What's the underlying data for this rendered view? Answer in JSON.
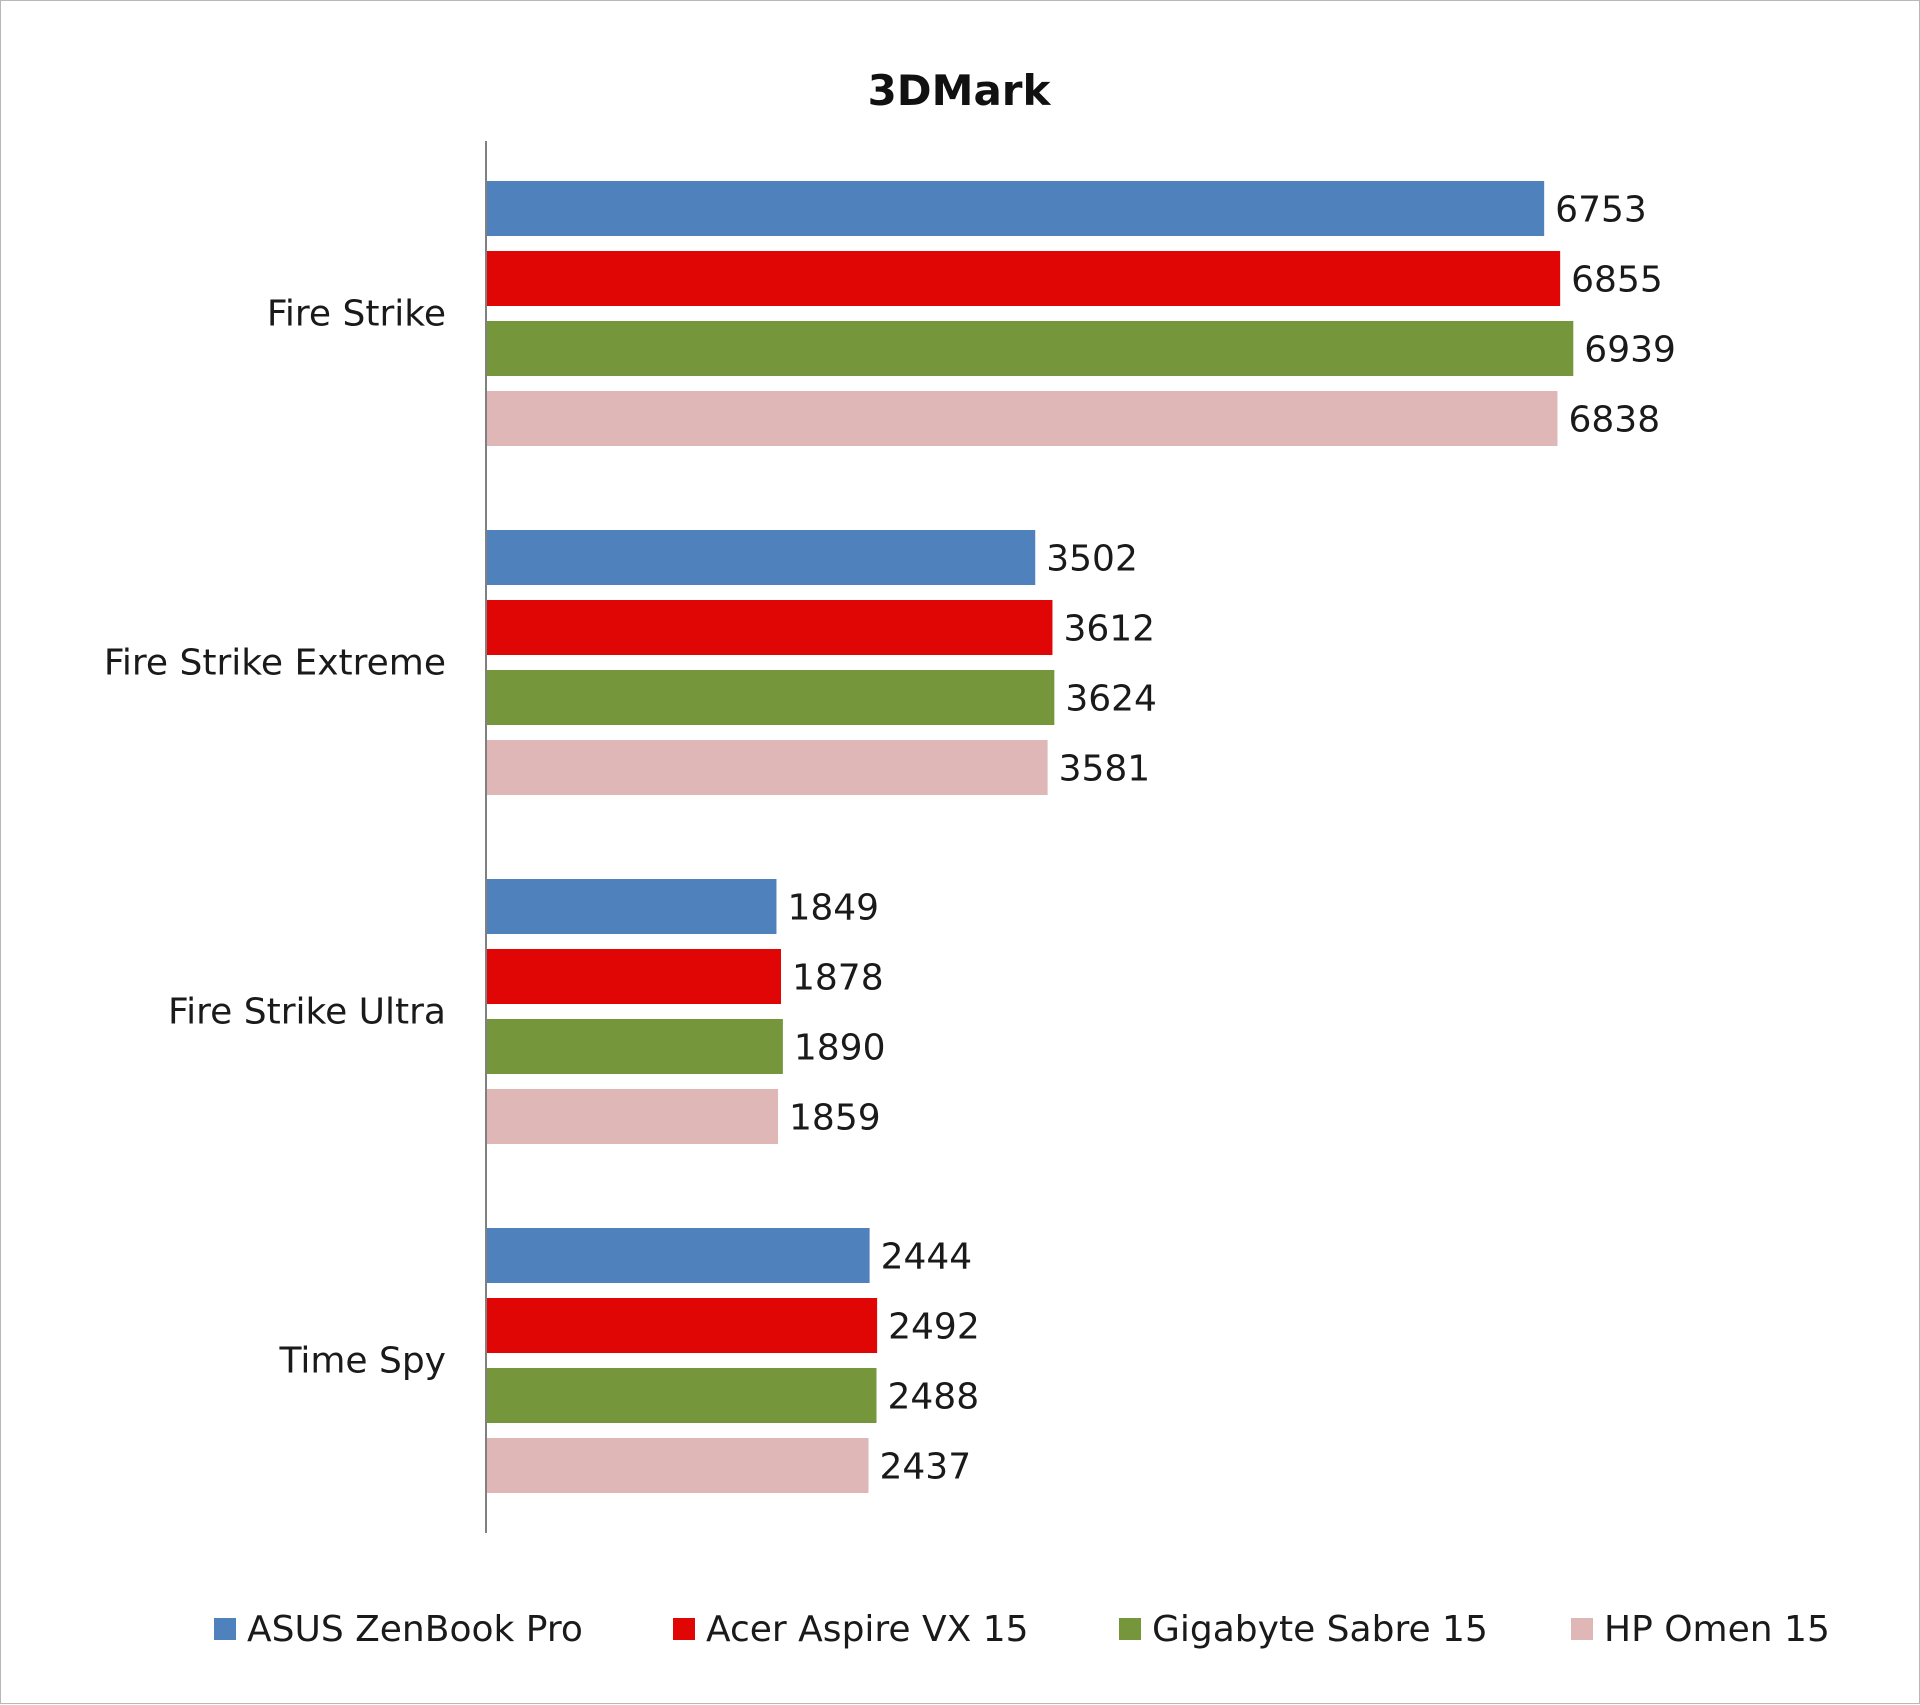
{
  "chart_data": {
    "type": "bar",
    "orientation": "horizontal",
    "title": "3DMark",
    "xlabel": "",
    "ylabel": "",
    "xlim": [
      0,
      7500
    ],
    "grid": false,
    "legend_position": "bottom",
    "categories": [
      "Fire Strike",
      "Fire Strike Extreme",
      "Fire Strike Ultra",
      "Time Spy"
    ],
    "series": [
      {
        "name": "ASUS ZenBook Pro",
        "color": "#4f81bd",
        "values": [
          6753,
          3502,
          1849,
          2444
        ]
      },
      {
        "name": "Acer Aspire VX 15",
        "color": "#e00606",
        "values": [
          6855,
          3612,
          1878,
          2492
        ]
      },
      {
        "name": "Gigabyte Sabre 15",
        "color": "#76963c",
        "values": [
          6939,
          3624,
          1890,
          2488
        ]
      },
      {
        "name": "HP Omen 15",
        "color": "#dfb7b7",
        "values": [
          6838,
          3581,
          1859,
          2437
        ]
      }
    ]
  }
}
